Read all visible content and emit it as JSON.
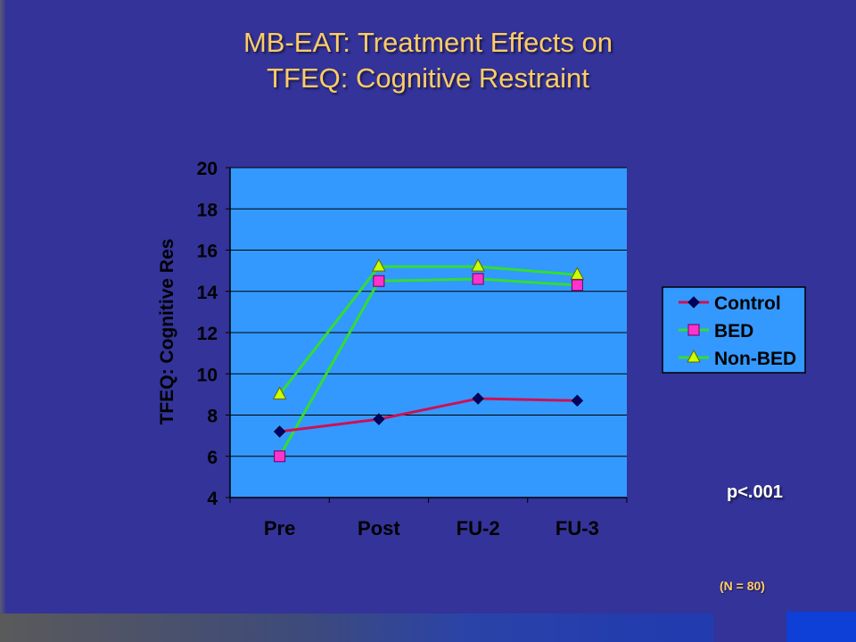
{
  "slide": {
    "title_line1": "MB-EAT: Treatment Effects on",
    "title_line2": "TFEQ: Cognitive Restraint",
    "p_value": "p<.001",
    "n_label": "(N = 80)"
  },
  "colors": {
    "background": "#333399",
    "plot_area": "#3399ff",
    "title": "#ffcc66",
    "control": "#cc1155",
    "bed": "#33dd33",
    "non_bed": "#33dd33",
    "bed_marker": "#ff33cc",
    "non_bed_marker": "#ccff00",
    "control_marker": "#000066"
  },
  "chart_data": {
    "type": "line",
    "title": "",
    "xlabel": "",
    "ylabel": "TFEQ: Cognitive Res",
    "categories": [
      "Pre",
      "Post",
      "FU-2",
      "FU-3"
    ],
    "ylim": [
      4,
      20
    ],
    "yticks": [
      4,
      6,
      8,
      10,
      12,
      14,
      16,
      18,
      20
    ],
    "grid": true,
    "legend_position": "right",
    "series": [
      {
        "name": "Control",
        "values": [
          7.2,
          7.8,
          8.8,
          8.7
        ],
        "marker": "diamond"
      },
      {
        "name": "BED",
        "values": [
          6.0,
          14.5,
          14.6,
          14.3
        ],
        "marker": "square"
      },
      {
        "name": "Non-BED",
        "values": [
          9.0,
          15.2,
          15.2,
          14.8
        ],
        "marker": "triangle"
      }
    ]
  }
}
